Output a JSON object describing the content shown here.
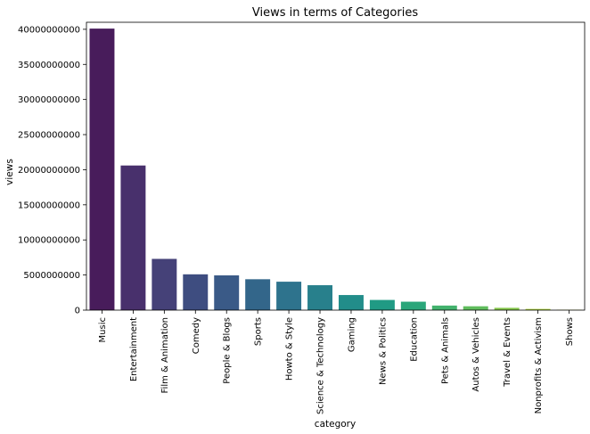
{
  "chart_data": {
    "type": "bar",
    "title": "Views in terms of Categories",
    "xlabel": "category",
    "ylabel": "views",
    "categories": [
      "Music",
      "Entertainment",
      "Film & Animation",
      "Comedy",
      "People & Blogs",
      "Sports",
      "Howto & Style",
      "Science & Technology",
      "Gaming",
      "News & Politics",
      "Education",
      "Pets & Animals",
      "Autos & Vehicles",
      "Travel & Events",
      "Nonprofits & Activism",
      "Shows"
    ],
    "values": [
      40100000000,
      20600000000,
      7300000000,
      5100000000,
      4950000000,
      4400000000,
      4050000000,
      3550000000,
      2150000000,
      1450000000,
      1200000000,
      650000000,
      550000000,
      330000000,
      170000000,
      50000000
    ],
    "colors": [
      "#481c5b",
      "#48306c",
      "#454178",
      "#3e4d80",
      "#3a5a87",
      "#33668a",
      "#2e738d",
      "#28808c",
      "#228d8a",
      "#209a84",
      "#2aa67a",
      "#43b26d",
      "#60bd5d",
      "#84c64a",
      "#a7cf37",
      "#cdd62c"
    ],
    "ylim": [
      0,
      41000000000
    ],
    "yticks": [
      0,
      5000000000,
      10000000000,
      15000000000,
      20000000000,
      25000000000,
      30000000000,
      35000000000,
      40000000000
    ],
    "ytick_labels": [
      "0",
      "5000000000",
      "10000000000",
      "15000000000",
      "20000000000",
      "25000000000",
      "30000000000",
      "35000000000",
      "40000000000"
    ],
    "grid": false,
    "legend": "none"
  }
}
